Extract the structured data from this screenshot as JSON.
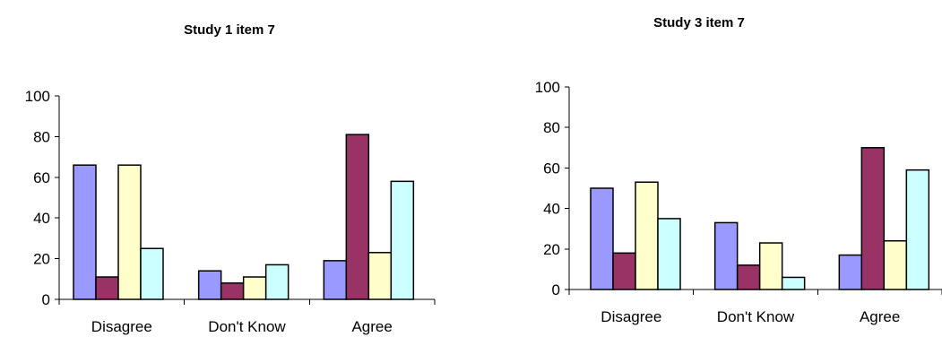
{
  "chart_data": [
    {
      "type": "bar",
      "title": "Study 1 item 7",
      "categories": [
        "Disagree",
        "Don't Know",
        "Agree"
      ],
      "yticks": [
        "0",
        "20",
        "40",
        "60",
        "80",
        "100"
      ],
      "ylim": [
        0,
        100
      ],
      "grid": false,
      "legend": "none",
      "series": [
        {
          "color": "#9999ff",
          "values": [
            66,
            14,
            19
          ]
        },
        {
          "color": "#993366",
          "values": [
            11,
            8,
            81
          ]
        },
        {
          "color": "#ffffcc",
          "values": [
            66,
            11,
            23
          ]
        },
        {
          "color": "#ccffff",
          "values": [
            25,
            17,
            58
          ]
        }
      ]
    },
    {
      "type": "bar",
      "title": "Study 3 item 7",
      "categories": [
        "Disagree",
        "Don't Know",
        "Agree"
      ],
      "yticks": [
        "0",
        "20",
        "40",
        "60",
        "80",
        "100"
      ],
      "ylim": [
        0,
        100
      ],
      "grid": false,
      "legend": "none",
      "series": [
        {
          "color": "#9999ff",
          "values": [
            50,
            33,
            17
          ]
        },
        {
          "color": "#993366",
          "values": [
            18,
            12,
            70
          ]
        },
        {
          "color": "#ffffcc",
          "values": [
            53,
            23,
            24
          ]
        },
        {
          "color": "#ccffff",
          "values": [
            35,
            6,
            59
          ]
        }
      ]
    }
  ]
}
